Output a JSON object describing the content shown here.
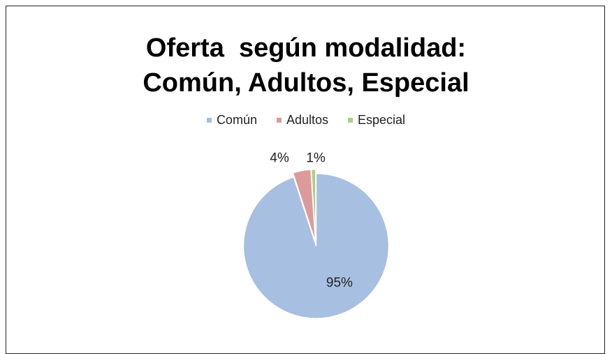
{
  "chart_data": {
    "type": "pie",
    "title": "Oferta  según modalidad:\nComún, Adultos, Especial",
    "categories": [
      "Común",
      "Adultos",
      "Especial"
    ],
    "values": [
      95,
      4,
      1
    ],
    "value_labels": [
      "95%",
      "4%",
      "1%"
    ],
    "colors": [
      "#a7bfe0",
      "#dc9b99",
      "#b3cc82"
    ],
    "legend": "top"
  }
}
